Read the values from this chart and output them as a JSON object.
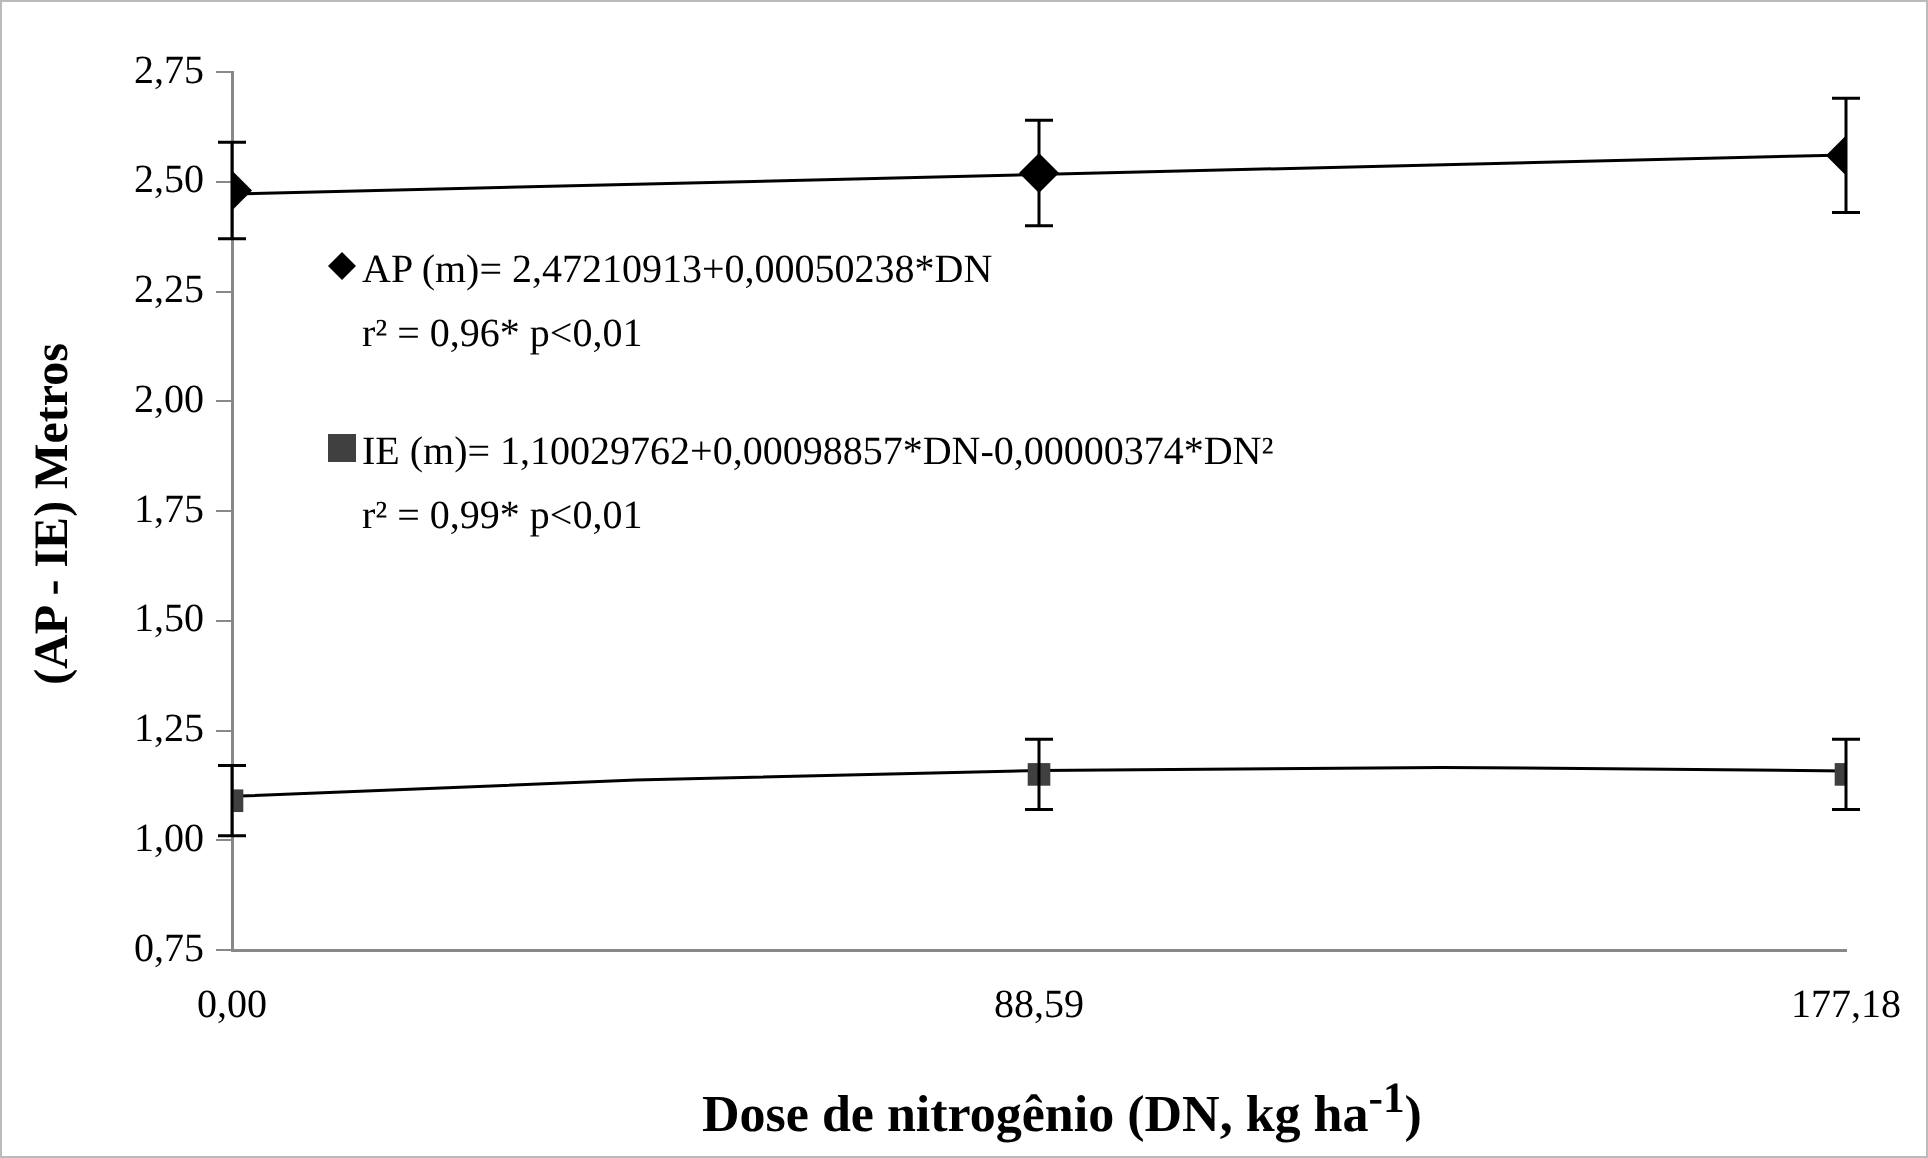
{
  "chart_data": {
    "type": "scatter",
    "xlabel": "Dose de nitrogênio (DN, kg ha$^{-1}$)",
    "ylabel": "(AP - IE) Metros",
    "xlim": [
      0,
      177.18
    ],
    "xticks": [
      {
        "value": 0,
        "label": "0,00"
      },
      {
        "value": 88.59,
        "label": "88,59"
      },
      {
        "value": 177.18,
        "label": "177,18"
      }
    ],
    "ylim": [
      0.75,
      2.75
    ],
    "yticks": [
      {
        "value": 0.75,
        "label": "0,75"
      },
      {
        "value": 1,
        "label": "1,00"
      },
      {
        "value": 1.25,
        "label": "1,25"
      },
      {
        "value": 1.5,
        "label": "1,50"
      },
      {
        "value": 1.75,
        "label": "1,75"
      },
      {
        "value": 2,
        "label": "2,00"
      },
      {
        "value": 2.25,
        "label": "2,25"
      },
      {
        "value": 2.5,
        "label": "2,50"
      },
      {
        "value": 2.75,
        "label": "2,75"
      }
    ],
    "grid": false,
    "legend": "top left",
    "annotations": [
      "r² = 0,96* p<0,01",
      "r² = 0,99* p<0,01"
    ],
    "series": [
      {
        "name": "AP (m)= 2,47210913+0,00050238*DN",
        "color": "#000000",
        "marker": "diamond",
        "x": [
          0,
          88.59,
          177.18
        ],
        "values": [
          2.48,
          2.52,
          2.56
        ],
        "errors": [
          0.11,
          0.12,
          0.13
        ]
      },
      {
        "name": "IE (m)= 1,10029762+0,00098857*DN-0,00000374*DN²",
        "color": "#404040",
        "marker": "square",
        "x": [
          0,
          88.59,
          177.18
        ],
        "values": [
          1.09,
          1.15,
          1.15
        ],
        "errors": [
          0.08,
          0.08,
          0.08
        ]
      },
      {
        "type": "line",
        "color": "#000000",
        "marker": "none",
        "x": [
          0,
          177.18
        ],
        "values": [
          2.472,
          2.561
        ]
      },
      {
        "type": "line",
        "color": "#000000",
        "marker": "none",
        "x": [
          0,
          44.3,
          88.59,
          132.89,
          177.18
        ],
        "values": [
          1.1,
          1.137,
          1.159,
          1.166,
          1.158
        ]
      }
    ]
  }
}
